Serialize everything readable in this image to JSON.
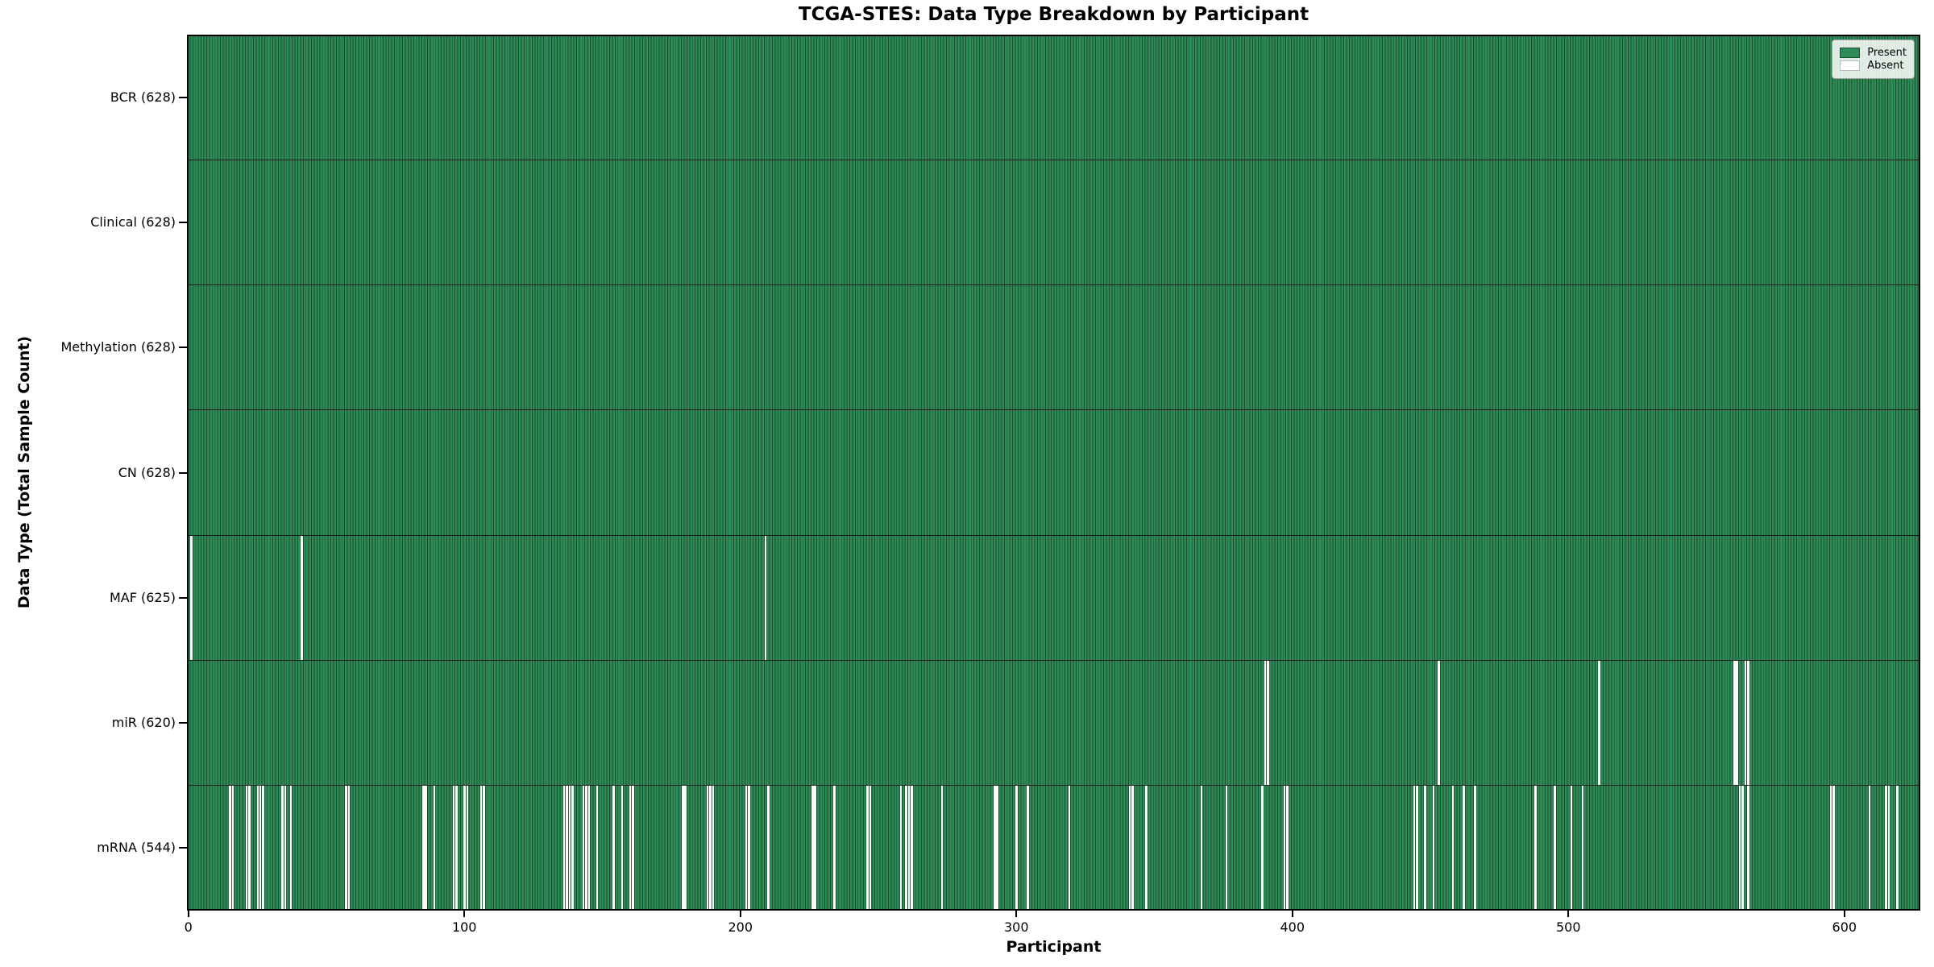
{
  "chart_data": {
    "type": "heatmap",
    "title": "TCGA-STES: Data Type Breakdown by Participant",
    "xlabel": "Participant",
    "ylabel": "Data Type (Total Sample Count)",
    "x_ticks": [
      0,
      100,
      200,
      300,
      400,
      500,
      600
    ],
    "x_range": [
      0,
      628
    ],
    "n_participants": 628,
    "grid": false,
    "legend_position": "upper right",
    "legend": [
      {
        "label": "Present",
        "color": "#2e8b57"
      },
      {
        "label": "Absent",
        "color": "#ffffff"
      }
    ],
    "colors": {
      "present": "#2e8b57",
      "absent": "#fbfbfb",
      "bar_edge": "#1b4d2e",
      "row_divider": "#1a1a1a",
      "axis": "#000000"
    },
    "rows": [
      {
        "label": "BCR",
        "total": 628,
        "display": "BCR (628)",
        "absent": []
      },
      {
        "label": "Clinical",
        "total": 628,
        "display": "Clinical (628)",
        "absent": []
      },
      {
        "label": "Methylation",
        "total": 628,
        "display": "Methylation (628)",
        "absent": []
      },
      {
        "label": "CN",
        "total": 628,
        "display": "CN (628)",
        "absent": []
      },
      {
        "label": "MAF",
        "total": 625,
        "display": "MAF (625)",
        "absent": [
          1,
          41,
          209
        ]
      },
      {
        "label": "miR",
        "total": 620,
        "display": "miR (620)",
        "absent": [
          390,
          391,
          453,
          511,
          560,
          561,
          564,
          565
        ]
      },
      {
        "label": "mRNA",
        "total": 544,
        "display": "mRNA (544)",
        "absent": [
          15,
          16,
          21,
          22,
          25,
          26,
          27,
          34,
          35,
          37,
          57,
          58,
          85,
          86,
          89,
          96,
          97,
          100,
          101,
          106,
          107,
          136,
          137,
          138,
          139,
          143,
          144,
          145,
          148,
          154,
          157,
          160,
          161,
          179,
          180,
          188,
          189,
          190,
          202,
          203,
          210,
          226,
          227,
          234,
          246,
          247,
          258,
          260,
          261,
          262,
          273,
          292,
          293,
          300,
          304,
          319,
          341,
          342,
          347,
          367,
          376,
          389,
          397,
          398,
          444,
          445,
          448,
          451,
          458,
          462,
          466,
          488,
          495,
          501,
          505,
          562,
          563,
          565,
          595,
          596,
          609,
          615,
          616,
          619
        ]
      }
    ]
  }
}
